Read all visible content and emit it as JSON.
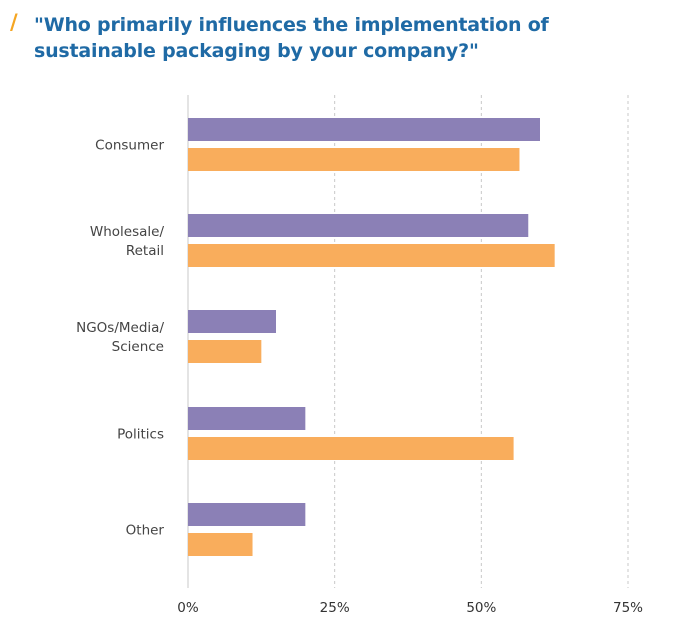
{
  "title": {
    "slash": "/",
    "text": "\"Who primarily influences the implementation of sustainable packaging by your company?\""
  },
  "colors": {
    "series1": "#8b80b6",
    "series2": "#f9ad5c",
    "grid": "#c8c8c8",
    "title": "#1f6aa5"
  },
  "chart_data": {
    "type": "bar",
    "orientation": "horizontal",
    "categories": [
      [
        "Consumer"
      ],
      [
        "Wholesale/",
        "Retail"
      ],
      [
        "NGOs/Media/",
        "Science"
      ],
      [
        "Politics"
      ],
      [
        "Other"
      ]
    ],
    "series": [
      {
        "values": [
          60,
          58,
          15,
          20,
          20
        ]
      },
      {
        "values": [
          56.5,
          62.5,
          12.5,
          55.5,
          11
        ]
      }
    ],
    "x_ticks": [
      "0%",
      "25%",
      "50%",
      "75%"
    ],
    "xlim": [
      0,
      75
    ],
    "grid": true
  }
}
